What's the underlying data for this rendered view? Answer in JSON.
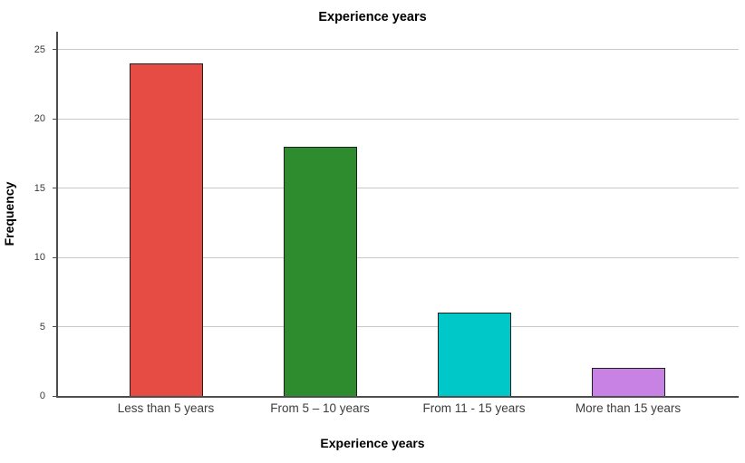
{
  "chart_data": {
    "type": "bar",
    "title": "Experience years",
    "xlabel": "Experience years",
    "ylabel": "Frequency",
    "categories": [
      "Less than 5 years",
      "From 5 – 10 years",
      "From 11 - 15 years",
      "More than 15 years"
    ],
    "values": [
      24,
      18,
      6,
      2
    ],
    "bar_colors": [
      "#e74c44",
      "#2e8b2e",
      "#00c8c8",
      "#c882e4"
    ],
    "bar_border_color": "#1f1f1f",
    "yticks": [
      0,
      5,
      10,
      15,
      20,
      25
    ],
    "ylim": [
      0,
      26.3
    ],
    "grid": "horizontal",
    "gridline_color": "#c9c9c9",
    "axis_color": "#4d4d4d",
    "legend": "none",
    "plot_background": "#ffffff"
  }
}
